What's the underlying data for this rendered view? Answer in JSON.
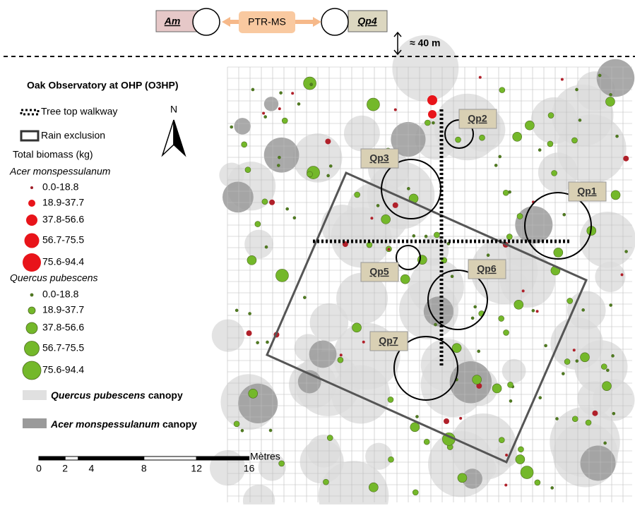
{
  "top": {
    "left_box": "Am",
    "center_box": "PTR-MS",
    "right_box": "Qp4",
    "distance": "≈ 40 m"
  },
  "legend": {
    "title": "Oak Observatory at OHP (O3HP)",
    "walkway": "Tree top walkway",
    "rain_exclusion": "Rain exclusion",
    "north": "N",
    "biomass_title": "Total biomass (kg)",
    "acer": {
      "name": "Acer monspessulanum",
      "ranges": [
        "0.0-18.8",
        "18.9-37.7",
        "37.8-56.6",
        "56.7-75.5",
        "75.6-94.4"
      ]
    },
    "quercus": {
      "name": "Quercus pubescens",
      "ranges": [
        "0.0-18.8",
        "18.9-37.7",
        "37.8-56.6",
        "56.7-75.5",
        "75.6-94.4"
      ]
    },
    "canopies": [
      {
        "species": "Quercus pubescens",
        "label": "canopy"
      },
      {
        "species": "Acer monspessulanum",
        "label": "canopy"
      }
    ]
  },
  "scale": {
    "ticks": [
      0,
      2,
      4,
      8,
      12,
      16
    ],
    "unit": "Mètres"
  },
  "plots": [
    "Qp1",
    "Qp2",
    "Qp3",
    "Qp5",
    "Qp6",
    "Qp7"
  ]
}
